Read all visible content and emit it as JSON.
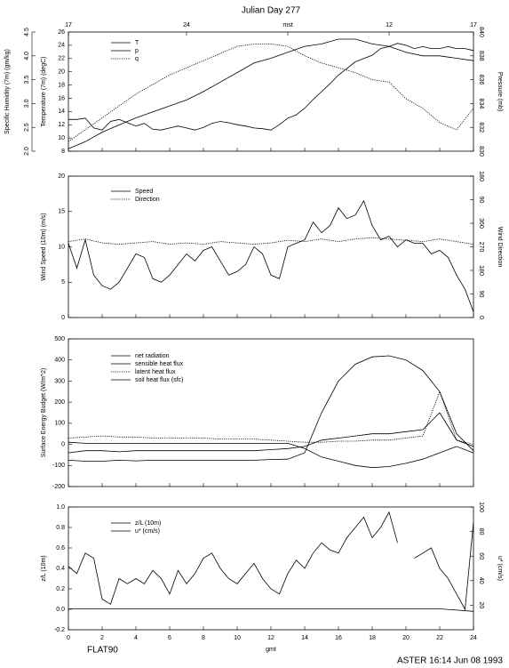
{
  "chart_data": [
    {
      "type": "line",
      "title": "Julian Day 277",
      "xlim": [
        0,
        24
      ],
      "top_xticks": [
        {
          "value": 0,
          "label": "17"
        },
        {
          "value": 7,
          "label": "24"
        },
        {
          "value": 13,
          "label": "mst"
        },
        {
          "value": 19,
          "label": "12"
        },
        {
          "value": 24,
          "label": "17"
        }
      ],
      "ylabel": "Temperature (7m) (degC)",
      "ylim": [
        8,
        26
      ],
      "yticks": [
        8,
        10,
        12,
        14,
        16,
        18,
        20,
        22,
        24,
        26
      ],
      "y2label": "Pressure (mb)",
      "y2lim": [
        830,
        840
      ],
      "y2ticks": [
        830,
        832,
        834,
        836,
        838,
        840
      ],
      "y3label": "Specific Humidity (7m) (gm/kg)",
      "y3lim": [
        2,
        4.5
      ],
      "y3ticks": [
        {
          "value": 2,
          "label": "2.0"
        },
        2.5,
        {
          "value": 3,
          "label": "3.0"
        },
        3.5,
        {
          "value": 4,
          "label": "4.0"
        },
        4.5
      ],
      "series": [
        {
          "name": "T",
          "color": "#000000",
          "style": "solid",
          "x": [
            0,
            0.5,
            1,
            1.5,
            2,
            2.5,
            3,
            3.5,
            4,
            4.5,
            5,
            5.5,
            6,
            6.5,
            7,
            7.5,
            8,
            8.5,
            9,
            9.5,
            10,
            10.5,
            11,
            11.5,
            12,
            12.5,
            13,
            13.5,
            14,
            14.5,
            15,
            15.5,
            16,
            16.5,
            17,
            17.5,
            18,
            18.5,
            19,
            19.5,
            20,
            20.5,
            21,
            21.5,
            22,
            22.5,
            23,
            23.5,
            24
          ],
          "values": [
            12.8,
            12.8,
            13,
            11.5,
            11.2,
            12.5,
            12.8,
            12.3,
            11.8,
            12.2,
            11.3,
            11.2,
            11.5,
            11.8,
            11.5,
            11.2,
            11.6,
            12.2,
            12.5,
            12.3,
            12,
            11.8,
            11.5,
            11.4,
            11.2,
            12,
            13,
            13.5,
            14.5,
            15.8,
            17,
            18.2,
            19.5,
            20.5,
            21.5,
            22,
            22.5,
            23.5,
            23.8,
            24.3,
            24,
            23.5,
            23.8,
            23.5,
            23.5,
            23.8,
            23.5,
            23.5,
            23.2
          ]
        },
        {
          "name": "p",
          "color": "#000000",
          "style": "solid",
          "axis": "y2",
          "x": [
            0,
            1,
            2,
            3,
            4,
            5,
            6,
            7,
            8,
            9,
            10,
            11,
            12,
            13,
            14,
            15,
            16,
            17,
            18,
            19,
            20,
            21,
            22,
            23,
            24
          ],
          "values": [
            830.2,
            830.8,
            831.6,
            832.2,
            832.8,
            833.3,
            833.8,
            834.3,
            835,
            835.8,
            836.6,
            837.4,
            837.8,
            838.3,
            838.8,
            839,
            839.4,
            839.4,
            839,
            838.8,
            838.3,
            838,
            838,
            837.8,
            837.6
          ]
        },
        {
          "name": "q",
          "color": "#000000",
          "style": "dotted",
          "axis": "y3",
          "x": [
            0,
            1,
            2,
            3,
            4,
            5,
            6,
            7,
            8,
            9,
            10,
            11,
            12,
            13,
            14,
            15,
            16,
            17,
            18,
            19,
            20,
            21,
            22,
            23,
            24
          ],
          "values": [
            2.2,
            2.45,
            2.7,
            2.95,
            3.2,
            3.4,
            3.6,
            3.75,
            3.9,
            4.05,
            4.2,
            4.25,
            4.25,
            4.2,
            4,
            3.85,
            3.75,
            3.65,
            3.5,
            3.45,
            3.1,
            2.9,
            2.6,
            2.45,
            2.9
          ]
        }
      ]
    },
    {
      "type": "line",
      "xlim": [
        0,
        24
      ],
      "ylabel": "Wind Speed (10m) (m/s)",
      "ylim": [
        0,
        20
      ],
      "yticks": [
        0,
        5,
        10,
        15,
        20
      ],
      "y2label": "Wind Direction",
      "y2lim": [
        0,
        540
      ],
      "y2ticks": [
        0,
        90,
        180,
        270,
        360,
        {
          "value": 450,
          "label": "90"
        },
        {
          "value": 540,
          "label": "180"
        }
      ],
      "series": [
        {
          "name": "Speed",
          "color": "#000000",
          "style": "solid",
          "x": [
            0,
            0.5,
            1,
            1.5,
            2,
            2.5,
            3,
            3.5,
            4,
            4.5,
            5,
            5.5,
            6,
            6.5,
            7,
            7.5,
            8,
            8.5,
            9,
            9.5,
            10,
            10.5,
            11,
            11.5,
            12,
            12.5,
            13,
            13.5,
            14,
            14.5,
            15,
            15.5,
            16,
            16.5,
            17,
            17.5,
            18,
            18.5,
            19,
            19.5,
            20,
            20.5,
            21,
            21.5,
            22,
            22.5,
            23,
            23.5,
            24
          ],
          "values": [
            10.5,
            7,
            11,
            6,
            4.5,
            4,
            5,
            7,
            9,
            8.5,
            5.5,
            5,
            6,
            7.5,
            9,
            8,
            9.5,
            10,
            8,
            6,
            6.5,
            7.5,
            10,
            9,
            6,
            5.5,
            10,
            10.5,
            11,
            13.5,
            12,
            13,
            15.5,
            14,
            14.5,
            16.5,
            13,
            11,
            11.5,
            10,
            11,
            10.5,
            10.5,
            9,
            9.5,
            8.5,
            6,
            4,
            0.8
          ]
        },
        {
          "name": "Direction",
          "color": "#000000",
          "style": "dotted",
          "axis": "y2",
          "x": [
            0,
            1,
            2,
            3,
            4,
            5,
            6,
            7,
            8,
            9,
            10,
            11,
            12,
            13,
            14,
            15,
            16,
            17,
            18,
            19,
            20,
            21,
            22,
            23,
            24
          ],
          "values": [
            290,
            300,
            285,
            280,
            285,
            290,
            280,
            285,
            280,
            290,
            285,
            280,
            285,
            295,
            290,
            300,
            290,
            300,
            305,
            300,
            295,
            290,
            300,
            290,
            280
          ]
        }
      ]
    },
    {
      "type": "line",
      "xlim": [
        0,
        24
      ],
      "ylabel": "Surface Energy Budget (W/m^2)",
      "ylim": [
        -200,
        500
      ],
      "yticks": [
        -200,
        -100,
        0,
        100,
        200,
        300,
        400,
        500
      ],
      "series": [
        {
          "name": "net radiation",
          "color": "#000000",
          "style": "solid",
          "x": [
            0,
            1,
            2,
            3,
            4,
            5,
            6,
            7,
            8,
            9,
            10,
            11,
            12,
            13,
            14,
            15,
            16,
            17,
            18,
            19,
            20,
            21,
            22,
            23,
            24
          ],
          "values": [
            -75,
            -80,
            -80,
            -75,
            -78,
            -75,
            -75,
            -75,
            -75,
            -75,
            -75,
            -75,
            -72,
            -70,
            -40,
            150,
            300,
            380,
            415,
            420,
            400,
            350,
            250,
            50,
            -30
          ]
        },
        {
          "name": "sensible heat flux",
          "color": "#000000",
          "style": "solid",
          "x": [
            0,
            1,
            2,
            3,
            4,
            5,
            6,
            7,
            8,
            9,
            10,
            11,
            12,
            13,
            14,
            15,
            16,
            17,
            18,
            19,
            20,
            21,
            22,
            23,
            24
          ],
          "values": [
            -40,
            -30,
            -30,
            -35,
            -30,
            -30,
            -30,
            -30,
            -30,
            -30,
            -30,
            -30,
            -25,
            -20,
            -10,
            20,
            30,
            40,
            50,
            50,
            60,
            70,
            150,
            20,
            -10
          ]
        },
        {
          "name": "latent heat flux",
          "color": "#000000",
          "style": "dotted",
          "x": [
            0,
            1,
            2,
            3,
            4,
            5,
            6,
            7,
            8,
            9,
            10,
            11,
            12,
            13,
            14,
            15,
            16,
            17,
            18,
            19,
            20,
            21,
            22,
            23,
            24
          ],
          "values": [
            30,
            35,
            40,
            35,
            35,
            30,
            30,
            30,
            30,
            25,
            25,
            25,
            20,
            15,
            10,
            10,
            15,
            15,
            20,
            20,
            30,
            40,
            250,
            20,
            0
          ]
        },
        {
          "name": "soil heat flux (sfc)",
          "color": "#000000",
          "style": "solid",
          "x": [
            0,
            1,
            2,
            3,
            4,
            5,
            6,
            7,
            8,
            9,
            10,
            11,
            12,
            13,
            14,
            15,
            16,
            17,
            18,
            19,
            20,
            21,
            22,
            23,
            24
          ],
          "values": [
            10,
            5,
            5,
            5,
            5,
            5,
            5,
            5,
            5,
            5,
            5,
            5,
            5,
            5,
            -20,
            -60,
            -80,
            -100,
            -110,
            -105,
            -90,
            -70,
            -40,
            -10,
            -40
          ]
        }
      ]
    },
    {
      "type": "line",
      "xlim": [
        0,
        24
      ],
      "xlabel": "gmt",
      "xticks": [
        0,
        2,
        4,
        6,
        8,
        10,
        12,
        14,
        16,
        18,
        20,
        22,
        24
      ],
      "ylabel": "z/L (10m)",
      "ylim": [
        -0.2,
        1
      ],
      "yticks": [
        -0.2,
        {
          "value": 0,
          "label": "0.0"
        },
        0.2,
        0.4,
        0.6,
        0.8,
        {
          "value": 1,
          "label": "1.0"
        }
      ],
      "y2label": "u* (cm/s)",
      "y2lim": [
        0,
        100
      ],
      "y2ticks": [
        20,
        40,
        60,
        80,
        100
      ],
      "series": [
        {
          "name": "z/L (10m)",
          "color": "#000000",
          "style": "solid",
          "x": [
            0,
            0.5,
            1,
            1.5,
            2,
            2.5,
            3,
            3.5,
            4,
            4.5,
            5,
            5.5,
            6,
            6.5,
            7,
            7.5,
            8,
            8.5,
            9,
            9.5,
            10,
            10.5,
            11,
            11.5,
            12,
            12.5,
            13,
            13.5,
            14,
            14.5,
            15,
            15.5,
            16,
            16.5,
            17,
            17.5,
            18,
            18.5,
            19,
            19.5,
            20,
            20.5,
            21,
            21.5,
            22,
            22.5,
            23,
            23.5,
            24
          ],
          "values": [
            0.42,
            0.35,
            0.55,
            0.5,
            0.1,
            0.05,
            0.3,
            0.25,
            0.3,
            0.25,
            0.38,
            0.3,
            0.15,
            0.38,
            0.25,
            0.35,
            0.5,
            0.55,
            0.4,
            0.3,
            0.25,
            0.35,
            0.45,
            0.3,
            0.2,
            0.15,
            0.35,
            0.48,
            0.4,
            0.55,
            0.65,
            0.58,
            0.55,
            0.7,
            0.8,
            0.9,
            0.7,
            0.8,
            0.95,
            0.65,
            null,
            0.5,
            0.55,
            0.6,
            0.4,
            0.3,
            0.15,
            0,
            0.85
          ]
        },
        {
          "name": "u* (cm/s)",
          "color": "#000000",
          "style": "solid",
          "axis": "y2",
          "x": [
            0,
            1,
            2,
            3,
            4,
            5,
            6,
            7,
            8,
            9,
            10,
            11,
            12,
            13,
            14,
            15,
            16,
            17,
            18,
            19,
            20,
            21,
            22,
            23,
            24
          ],
          "values": [
            17,
            17,
            17,
            17,
            17,
            17,
            17,
            17,
            17,
            17,
            17,
            17,
            17,
            17,
            17,
            17,
            17,
            17,
            17,
            17,
            17,
            17,
            17,
            16,
            15
          ]
        }
      ]
    }
  ],
  "footer": {
    "left": "FLAT90",
    "right": "ASTER 16:14 Jun 08 1993"
  }
}
